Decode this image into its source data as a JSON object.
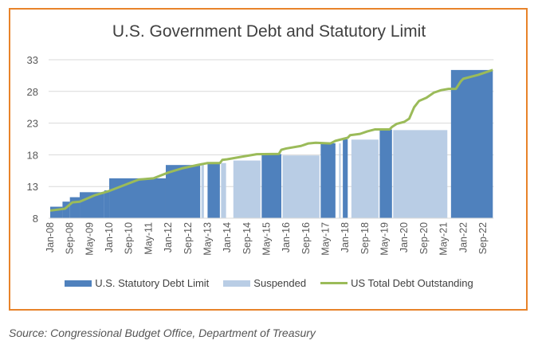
{
  "chart_data": {
    "type": "bar+line",
    "title": "U.S. Government Debt and Statutory Limit",
    "ylim": [
      8,
      33
    ],
    "yticks": [
      8,
      13,
      18,
      23,
      28,
      33
    ],
    "xlim": [
      "2008-01",
      "2023-01"
    ],
    "xtick_labels": [
      "Jan-08",
      "Sep-08",
      "May-09",
      "Jan-10",
      "Sep-10",
      "May-11",
      "Jan-12",
      "Sep-12",
      "May-13",
      "Jan-14",
      "Sep-14",
      "May-15",
      "Jan-16",
      "Sep-16",
      "May-17",
      "Jan-18",
      "Sep-18",
      "May-19",
      "Jan-20",
      "Sep-20",
      "May-21",
      "Jan-22",
      "Sep-22"
    ],
    "grid": true,
    "legend_position": "bottom",
    "colors": {
      "limit": "#4f81bd",
      "suspended": "#b9cde5",
      "debt": "#9bbb59",
      "border": "#e8832a"
    },
    "series": [
      {
        "name": "U.S. Statutory Debt Limit",
        "type": "area-step",
        "segments": [
          {
            "start": "2008-01",
            "end": "2008-06",
            "value": 9.815
          },
          {
            "start": "2008-06",
            "end": "2008-09",
            "value": 10.615
          },
          {
            "start": "2008-09",
            "end": "2009-01",
            "value": 11.315
          },
          {
            "start": "2009-01",
            "end": "2009-11",
            "value": 12.104
          },
          {
            "start": "2009-11",
            "end": "2010-01",
            "value": 12.394
          },
          {
            "start": "2010-01",
            "end": "2011-12",
            "value": 14.294
          },
          {
            "start": "2011-12",
            "end": "2013-02",
            "value": 16.394
          },
          {
            "start": "2013-05",
            "end": "2013-10",
            "value": 16.699
          },
          {
            "start": "2015-03",
            "end": "2015-11",
            "value": 18.113
          },
          {
            "start": "2017-03",
            "end": "2017-09",
            "value": 19.809
          },
          {
            "start": "2017-12",
            "end": "2018-02",
            "value": 20.456
          },
          {
            "start": "2019-03",
            "end": "2019-08",
            "value": 21.988
          },
          {
            "start": "2021-08",
            "end": "2023-01",
            "value": 31.381
          }
        ]
      },
      {
        "name": "Suspended",
        "type": "bar",
        "segments": [
          {
            "start": "2013-02",
            "end": "2013-04",
            "value": 16.7
          },
          {
            "start": "2013-10",
            "end": "2014-01",
            "value": 16.7
          },
          {
            "start": "2014-03",
            "end": "2015-03",
            "value": 17.1
          },
          {
            "start": "2015-11",
            "end": "2017-03",
            "value": 17.9
          },
          {
            "start": "2017-10",
            "end": "2017-11",
            "value": 19.8
          },
          {
            "start": "2018-03",
            "end": "2019-03",
            "value": 20.4
          },
          {
            "start": "2019-08",
            "end": "2021-07",
            "value": 21.9
          }
        ]
      },
      {
        "name": "US Total Debt Outstanding",
        "type": "line",
        "points": [
          [
            "2008-01",
            9.2
          ],
          [
            "2008-07",
            9.5
          ],
          [
            "2008-10",
            10.5
          ],
          [
            "2009-01",
            10.6
          ],
          [
            "2009-07",
            11.6
          ],
          [
            "2010-01",
            12.3
          ],
          [
            "2010-07",
            13.2
          ],
          [
            "2011-01",
            14.1
          ],
          [
            "2011-07",
            14.3
          ],
          [
            "2012-01",
            15.2
          ],
          [
            "2012-07",
            15.9
          ],
          [
            "2013-01",
            16.4
          ],
          [
            "2013-05",
            16.7
          ],
          [
            "2013-10",
            16.7
          ],
          [
            "2013-11",
            17.2
          ],
          [
            "2014-01",
            17.3
          ],
          [
            "2014-07",
            17.7
          ],
          [
            "2015-01",
            18.1
          ],
          [
            "2015-10",
            18.15
          ],
          [
            "2015-11",
            18.8
          ],
          [
            "2016-01",
            19.0
          ],
          [
            "2016-07",
            19.4
          ],
          [
            "2016-10",
            19.8
          ],
          [
            "2017-01",
            19.9
          ],
          [
            "2017-07",
            19.8
          ],
          [
            "2017-09",
            20.2
          ],
          [
            "2017-12",
            20.5
          ],
          [
            "2018-02",
            20.7
          ],
          [
            "2018-03",
            21.1
          ],
          [
            "2018-07",
            21.3
          ],
          [
            "2018-10",
            21.7
          ],
          [
            "2019-01",
            22.0
          ],
          [
            "2019-07",
            22.0
          ],
          [
            "2019-08",
            22.4
          ],
          [
            "2019-10",
            22.9
          ],
          [
            "2020-01",
            23.2
          ],
          [
            "2020-03",
            23.7
          ],
          [
            "2020-05",
            25.5
          ],
          [
            "2020-07",
            26.5
          ],
          [
            "2020-10",
            27.0
          ],
          [
            "2021-01",
            27.8
          ],
          [
            "2021-04",
            28.2
          ],
          [
            "2021-07",
            28.4
          ],
          [
            "2021-10",
            28.4
          ],
          [
            "2021-12",
            29.6
          ],
          [
            "2022-01",
            30.0
          ],
          [
            "2022-07",
            30.6
          ],
          [
            "2022-10",
            31.0
          ],
          [
            "2023-01",
            31.4
          ]
        ]
      }
    ]
  },
  "legend": {
    "limit": "U.S. Statutory Debt Limit",
    "suspended": "Suspended",
    "debt": "US Total Debt Outstanding"
  },
  "source": "Source: Congressional Budget Office, Department of Treasury"
}
